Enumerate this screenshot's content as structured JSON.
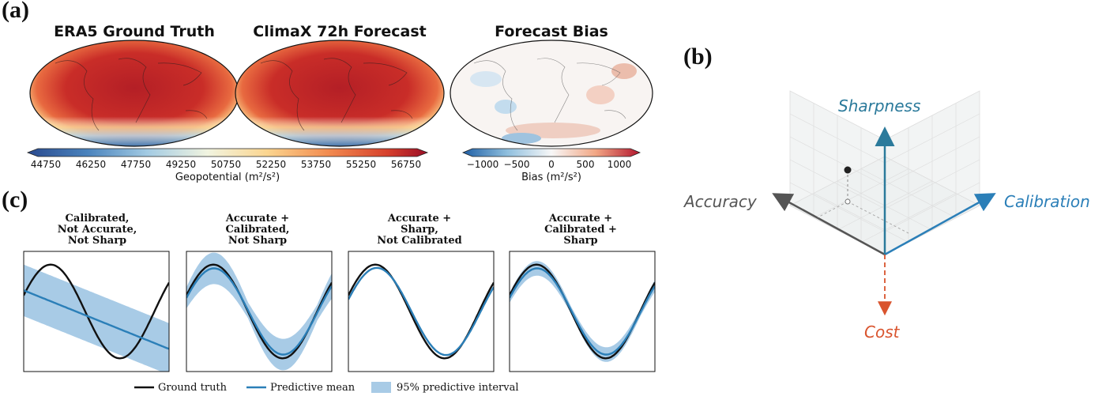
{
  "panels": {
    "a": "(a)",
    "b": "(b)",
    "c": "(c)"
  },
  "maps": [
    {
      "title": "ERA5 Ground Truth",
      "kind": "field"
    },
    {
      "title": "ClimaX 72h Forecast",
      "kind": "field"
    },
    {
      "title": "Forecast Bias",
      "kind": "bias"
    }
  ],
  "geopotential_colorbar": {
    "ticks": [
      "44750",
      "46250",
      "47750",
      "49250",
      "50750",
      "52250",
      "53750",
      "55250",
      "56750"
    ],
    "label": "Geopotential (m²/s²)"
  },
  "bias_colorbar": {
    "ticks": [
      "−1000",
      "−500",
      "0",
      "500",
      "1000"
    ],
    "label": "Bias (m²/s²)"
  },
  "radar": {
    "axes": {
      "sharpness": "Sharpness",
      "accuracy": "Accuracy",
      "calibration": "Calibration",
      "cost": "Cost"
    },
    "colors": {
      "sharpness": "#2b7a9b",
      "accuracy": "#555555",
      "calibration": "#2b7fb8",
      "cost": "#d9542e"
    }
  },
  "subplots": [
    {
      "title_lines": [
        "Calibrated,",
        "Not Accurate,",
        "Not Sharp"
      ],
      "mean_type": "linear",
      "band_width": 0.55
    },
    {
      "title_lines": [
        "Accurate +",
        "Calibrated,",
        "Not Sharp"
      ],
      "mean_type": "sine",
      "band_width": 0.28
    },
    {
      "title_lines": [
        "Accurate +",
        "Sharp,",
        "Not Calibrated"
      ],
      "mean_type": "sine_shift",
      "band_width": 0.0
    },
    {
      "title_lines": [
        "Accurate +",
        "Calibrated +",
        "Sharp"
      ],
      "mean_type": "sine",
      "band_width": 0.13
    }
  ],
  "legend": {
    "ground_truth": "Ground truth",
    "predictive_mean": "Predictive mean",
    "interval": "95% predictive interval"
  }
}
